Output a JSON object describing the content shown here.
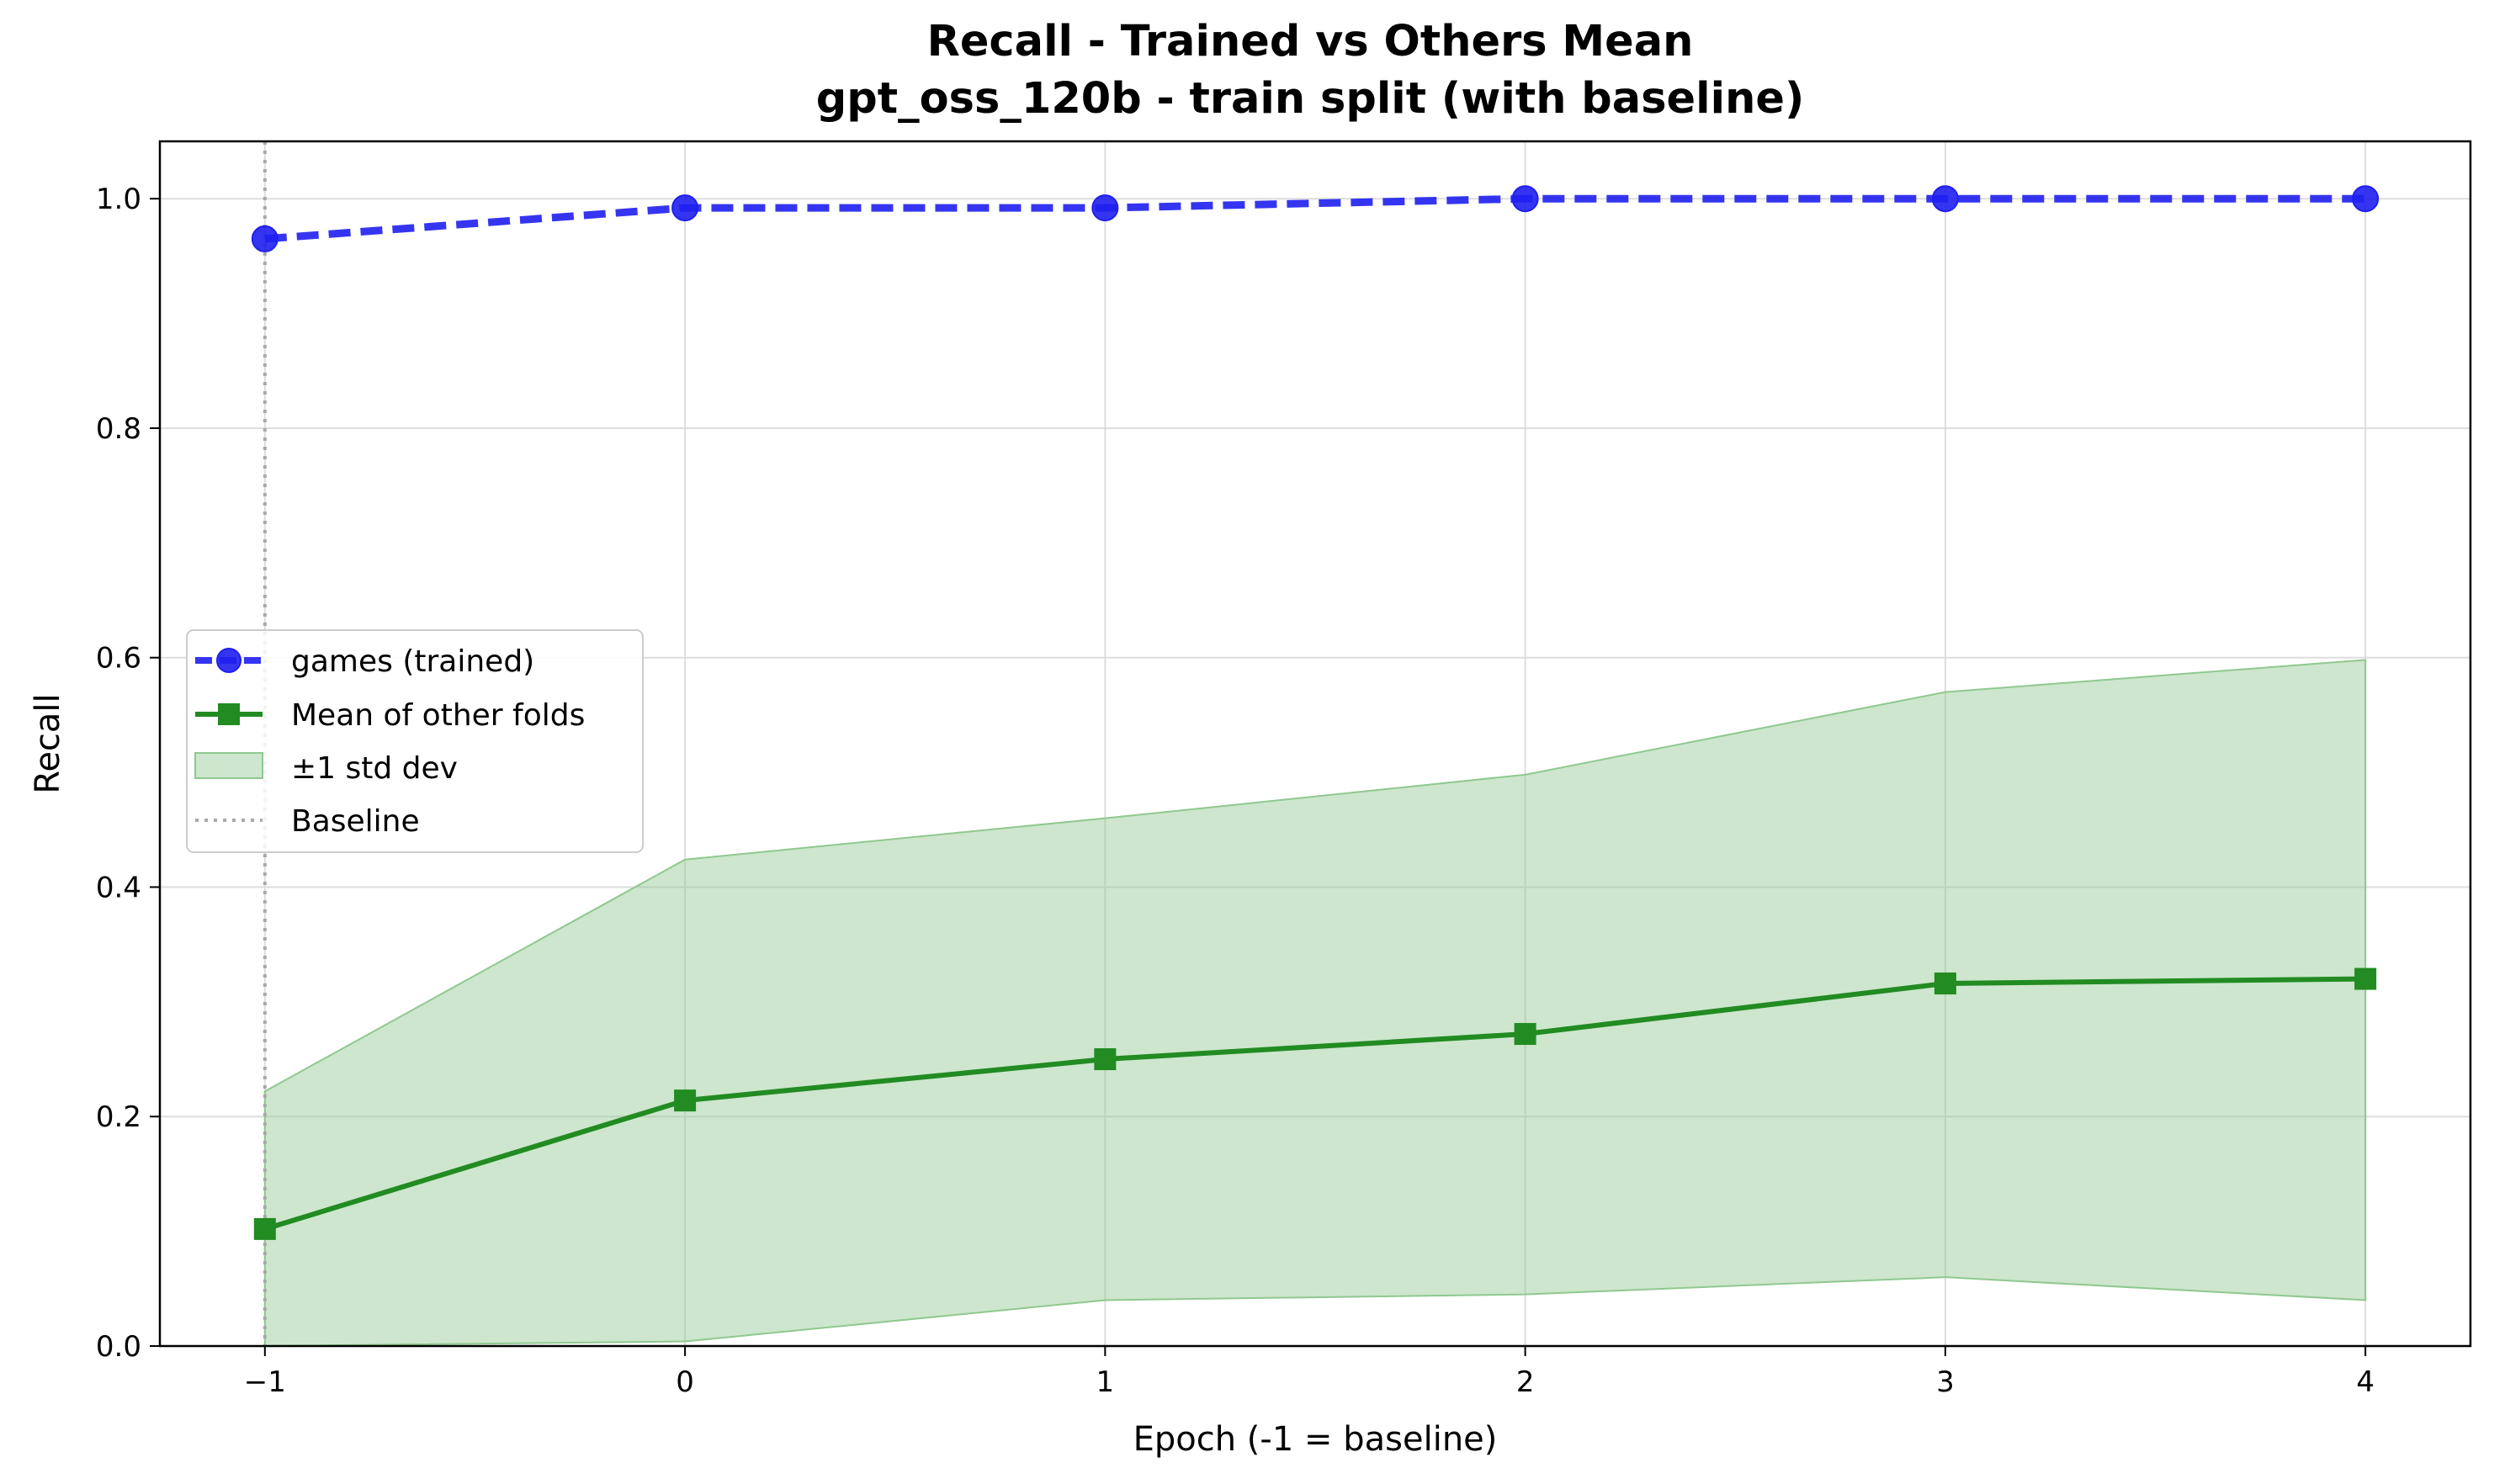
{
  "chart_data": {
    "type": "line",
    "title": "Recall - Trained vs Others Mean",
    "subtitle": "gpt_oss_120b - train split (with baseline)",
    "xlabel": "Epoch (-1 = baseline)",
    "ylabel": "Recall",
    "x": [
      -1,
      0,
      1,
      2,
      3,
      4
    ],
    "xlim": [
      -1.25,
      4.25
    ],
    "ylim": [
      0.0,
      1.05
    ],
    "xticks": [
      "−1",
      "0",
      "1",
      "2",
      "3",
      "4"
    ],
    "yticks": [
      "0.0",
      "0.2",
      "0.4",
      "0.6",
      "0.8",
      "1.0"
    ],
    "grid": true,
    "legend_position": "center-left",
    "series": [
      {
        "name": "games (trained)",
        "values": [
          0.965,
          0.992,
          0.992,
          1.0,
          1.0,
          1.0
        ],
        "color": "#1f1fef",
        "style": "dashed",
        "marker": "circle"
      },
      {
        "name": "Mean of other folds",
        "values": [
          0.102,
          0.214,
          0.25,
          0.272,
          0.316,
          0.32
        ],
        "color": "#228b22",
        "style": "solid",
        "marker": "square"
      }
    ],
    "band": {
      "name": "±1 std dev",
      "lower": [
        0.0,
        0.004,
        0.04,
        0.045,
        0.06,
        0.04
      ],
      "upper": [
        0.222,
        0.424,
        0.46,
        0.498,
        0.57,
        0.598
      ],
      "color": "#90c890"
    },
    "baseline": {
      "name": "Baseline",
      "x": -1,
      "color": "#a9a9a9"
    }
  }
}
